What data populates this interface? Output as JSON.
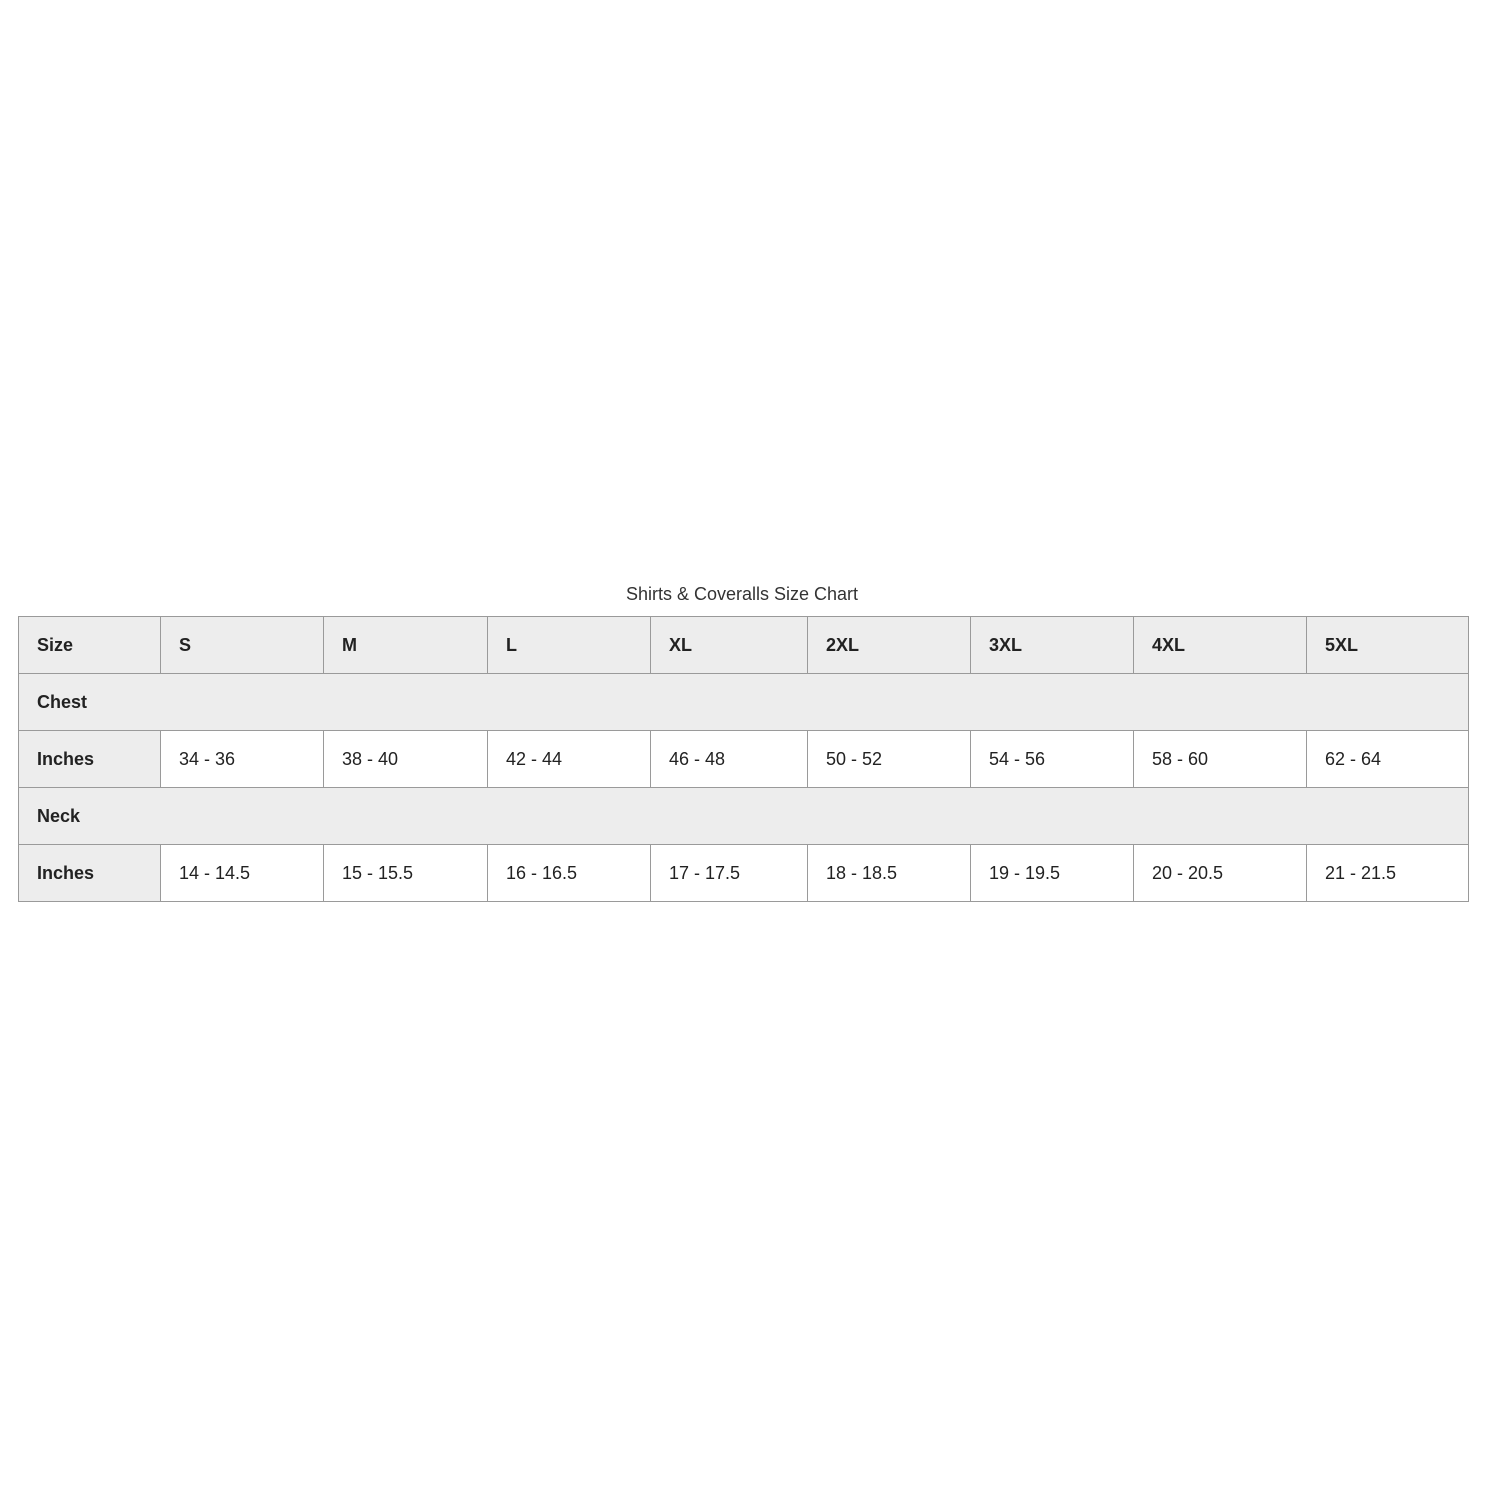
{
  "title": "Shirts & Coveralls Size Chart",
  "header": {
    "label": "Size",
    "sizes": [
      "S",
      "M",
      "L",
      "XL",
      "2XL",
      "3XL",
      "4XL",
      "5XL"
    ]
  },
  "sections": [
    {
      "name": "Chest",
      "row_label": "Inches",
      "values": [
        "34 - 36",
        "38 - 40",
        "42 - 44",
        "46 - 48",
        "50 - 52",
        "54 - 56",
        "58 - 60",
        "62 - 64"
      ]
    },
    {
      "name": "Neck",
      "row_label": "Inches",
      "values": [
        "14 - 14.5",
        "15 - 15.5",
        "16 - 16.5",
        "17 - 17.5",
        "18 - 18.5",
        "19 - 19.5",
        "20 - 20.5",
        "21 - 21.5"
      ]
    }
  ],
  "colors": {
    "header_bg": "#ededed",
    "border": "#9a9a9a"
  }
}
